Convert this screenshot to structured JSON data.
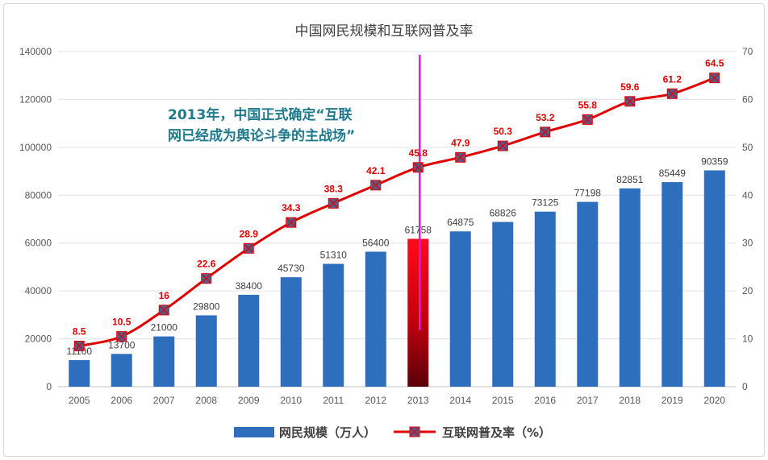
{
  "chart_data": {
    "type": "bar+line",
    "title": "中国网民规模和互联网普及率",
    "categories": [
      "2005",
      "2006",
      "2007",
      "2008",
      "2009",
      "2010",
      "2011",
      "2012",
      "2013",
      "2014",
      "2015",
      "2016",
      "2017",
      "2018",
      "2019",
      "2020"
    ],
    "series": [
      {
        "name": "网民规模（万人）",
        "type": "bar",
        "axis": "left",
        "values": [
          11100,
          13700,
          21000,
          29800,
          38400,
          45730,
          51310,
          56400,
          61758,
          64875,
          68826,
          73125,
          77198,
          82851,
          85449,
          90359
        ],
        "labels": [
          "11100",
          "13700",
          "21000",
          "29800",
          "38400",
          "45730",
          "51310",
          "56400",
          "61758",
          "64875",
          "68826",
          "73125",
          "77198",
          "82851",
          "85449",
          "90359"
        ],
        "color": "#2e6fbd",
        "highlight_index": 8,
        "highlight_color": "#e8001c"
      },
      {
        "name": "互联网普及率（%）",
        "type": "line",
        "axis": "right",
        "values": [
          8.5,
          10.5,
          16,
          22.6,
          28.9,
          34.3,
          38.3,
          42.1,
          45.8,
          47.9,
          50.3,
          53.2,
          55.8,
          59.6,
          61.2,
          64.5
        ],
        "labels": [
          "8.5",
          "10.5",
          "16",
          "22.6",
          "28.9",
          "34.3",
          "38.3",
          "42.1",
          "45.8",
          "47.9",
          "50.3",
          "53.2",
          "55.8",
          "59.6",
          "61.2",
          "64.5"
        ],
        "color": "#e00000"
      }
    ],
    "left_axis": {
      "min": 0,
      "max": 140000,
      "step": 20000,
      "ticks": [
        "0",
        "20000",
        "40000",
        "60000",
        "80000",
        "100000",
        "120000",
        "140000"
      ]
    },
    "right_axis": {
      "min": 0,
      "max": 70,
      "step": 10,
      "ticks": [
        "0",
        "10",
        "20",
        "30",
        "40",
        "50",
        "60",
        "70"
      ]
    },
    "grid": true,
    "legend_position": "bottom",
    "annotation": {
      "lines": [
        "2013年，中国正式确定“互联",
        "网已经成为舆论斗争的主战场”"
      ],
      "marker_category": "2013",
      "marker_color": "#e21bd4",
      "text_color": "#1f7a8c"
    }
  }
}
